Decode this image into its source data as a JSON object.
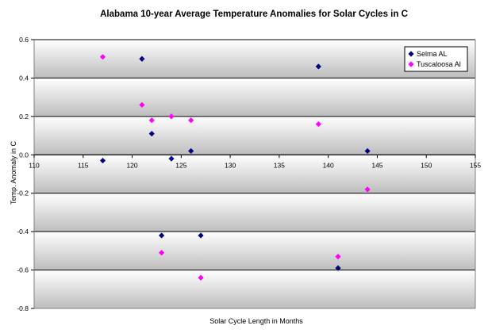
{
  "chart_data": {
    "type": "scatter",
    "title": "Alabama 10-year Average Temperature Anomalies for Solar Cycles in C",
    "xlabel": "Solar Cycle Length in Months",
    "ylabel": "Temp. Anomaly in C",
    "xlim": [
      110,
      155
    ],
    "ylim": [
      -0.8,
      0.6
    ],
    "x_ticks": [
      "110",
      "115",
      "120",
      "125",
      "130",
      "135",
      "140",
      "145",
      "150",
      "155"
    ],
    "y_ticks": [
      "0.6",
      "0.4",
      "0.2",
      "0.0",
      "-0.2",
      "-0.4",
      "-0.6",
      "-0.8"
    ],
    "grid": true,
    "legend_position": "top-right",
    "series": [
      {
        "name": "Selma AL",
        "color": "#000080",
        "marker": "diamond",
        "points": [
          {
            "x": 117,
            "y": -0.03
          },
          {
            "x": 121,
            "y": 0.5
          },
          {
            "x": 122,
            "y": 0.11
          },
          {
            "x": 123,
            "y": -0.42
          },
          {
            "x": 124,
            "y": -0.02
          },
          {
            "x": 126,
            "y": 0.02
          },
          {
            "x": 127,
            "y": -0.42
          },
          {
            "x": 139,
            "y": 0.46
          },
          {
            "x": 141,
            "y": -0.59
          },
          {
            "x": 144,
            "y": 0.02
          }
        ]
      },
      {
        "name": "Tuscaloosa Al",
        "color": "#ff00ff",
        "marker": "diamond",
        "points": [
          {
            "x": 117,
            "y": 0.51
          },
          {
            "x": 121,
            "y": 0.26
          },
          {
            "x": 122,
            "y": 0.18
          },
          {
            "x": 123,
            "y": -0.51
          },
          {
            "x": 124,
            "y": 0.2
          },
          {
            "x": 126,
            "y": 0.18
          },
          {
            "x": 127,
            "y": -0.64
          },
          {
            "x": 139,
            "y": 0.16
          },
          {
            "x": 141,
            "y": -0.53
          },
          {
            "x": 144,
            "y": -0.18
          }
        ]
      }
    ]
  }
}
